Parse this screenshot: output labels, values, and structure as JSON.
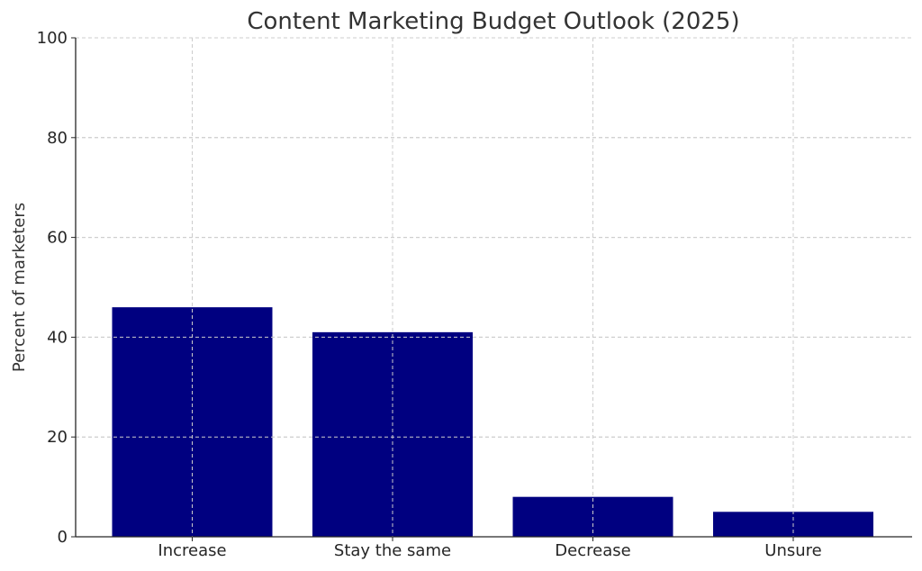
{
  "chart_data": {
    "type": "bar",
    "title": "Content Marketing Budget Outlook (2025)",
    "xlabel": "",
    "ylabel": "Percent of marketers",
    "categories": [
      "Increase",
      "Stay the same",
      "Decrease",
      "Unsure"
    ],
    "values": [
      46,
      41,
      8,
      5
    ],
    "ylim": [
      0,
      100
    ],
    "yticks": [
      "0",
      "20",
      "40",
      "60",
      "80",
      "100"
    ],
    "grid": true,
    "bar_color": "#000080"
  }
}
